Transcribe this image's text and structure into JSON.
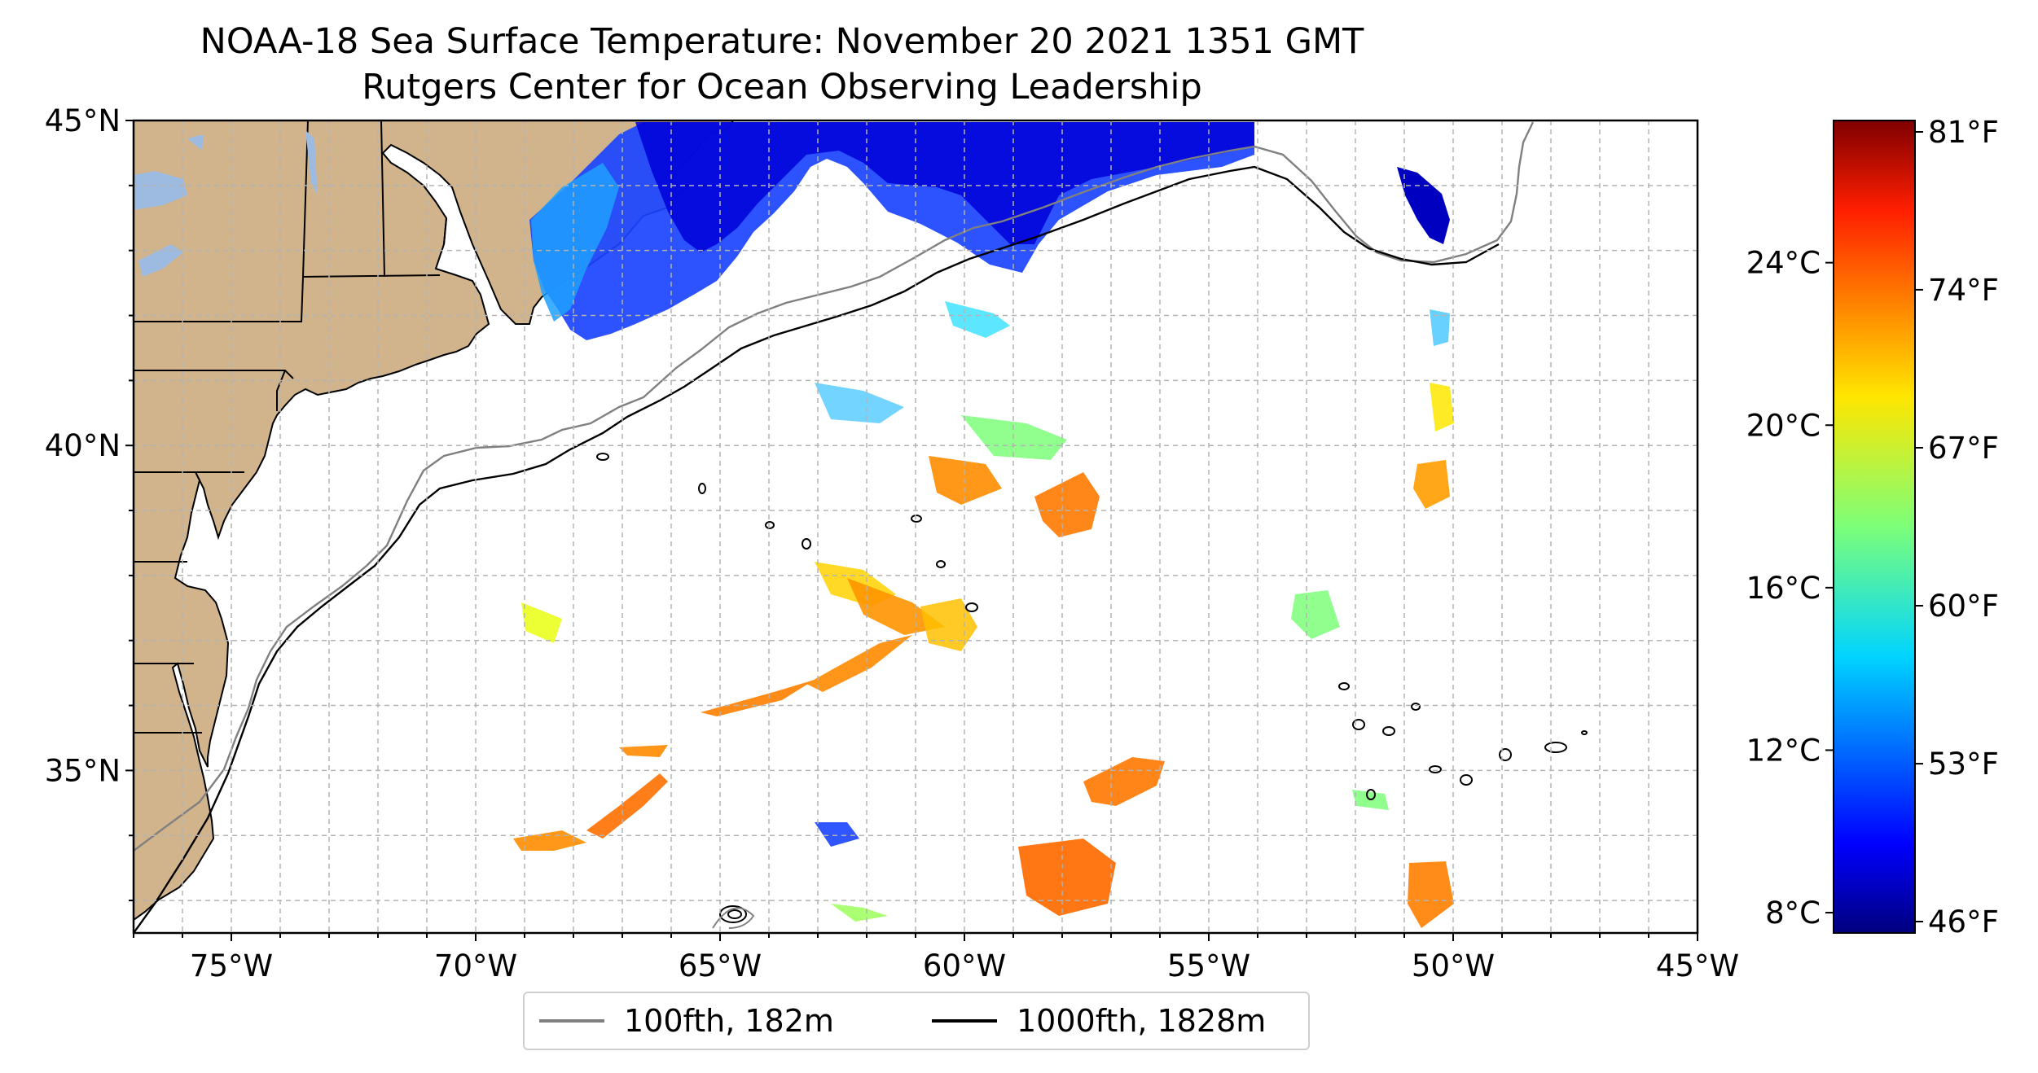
{
  "title": "NOAA-18 Sea Surface Temperature: November 20 2021 1351 GMT",
  "subtitle": "Rutgers Center for Ocean Observing Leadership",
  "map": {
    "projection": "plate carree",
    "lon_range": [
      -77,
      -45
    ],
    "lat_range": [
      32.5,
      45
    ],
    "lon_ticks": [
      {
        "value": -75,
        "label": "75°W"
      },
      {
        "value": -70,
        "label": "70°W"
      },
      {
        "value": -65,
        "label": "65°W"
      },
      {
        "value": -60,
        "label": "60°W"
      },
      {
        "value": -55,
        "label": "55°W"
      },
      {
        "value": -50,
        "label": "50°W"
      },
      {
        "value": -45,
        "label": "45°W"
      }
    ],
    "lat_ticks": [
      {
        "value": 35,
        "label": "35°N"
      },
      {
        "value": 40,
        "label": "40°N"
      },
      {
        "value": 45,
        "label": "45°N"
      }
    ],
    "gridlines": "dashed, every 1°",
    "land_color": "#d2b48c",
    "lake_color": "#9dbbe0",
    "ocean_color": "#ffffff"
  },
  "legend": {
    "items": [
      {
        "label": "100fth, 182m",
        "color": "#808080"
      },
      {
        "label": "1000fth, 1828m",
        "color": "#000000"
      }
    ],
    "placement": "bottom-center"
  },
  "colorbar": {
    "colormap": "jet",
    "range_c": [
      7.5,
      27.5
    ],
    "celsius_ticks": [
      {
        "value": 8,
        "label": "8°C"
      },
      {
        "value": 12,
        "label": "12°C"
      },
      {
        "value": 16,
        "label": "16°C"
      },
      {
        "value": 20,
        "label": "20°C"
      },
      {
        "value": 24,
        "label": "24°C"
      }
    ],
    "fahrenheit_ticks": [
      {
        "value": 46,
        "label": "46°F"
      },
      {
        "value": 53,
        "label": "53°F"
      },
      {
        "value": 60,
        "label": "60°F"
      },
      {
        "value": 67,
        "label": "67°F"
      },
      {
        "value": 74,
        "label": "74°F"
      },
      {
        "value": 81,
        "label": "81°F"
      }
    ]
  }
}
